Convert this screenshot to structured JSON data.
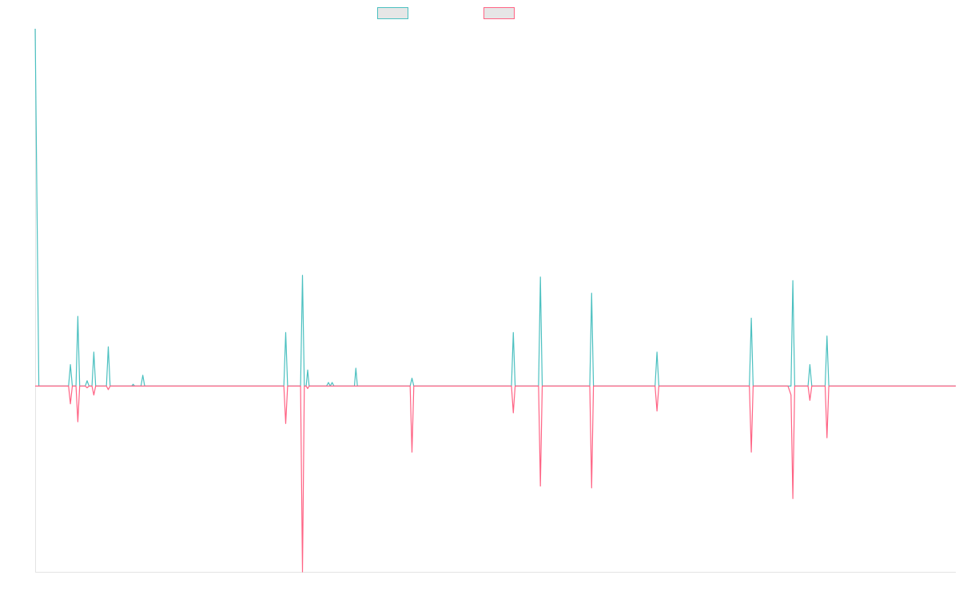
{
  "chart_data": {
    "type": "line",
    "xlim": [
      0,
      248
    ],
    "ylim": [
      -52,
      100
    ],
    "grid": false,
    "legend_position": "top-center",
    "series": [
      {
        "name": "",
        "color": "#4bc0c0",
        "points": [
          [
            0,
            100
          ],
          [
            1,
            0
          ],
          [
            9,
            0
          ],
          [
            9.5,
            6
          ],
          [
            10,
            0
          ],
          [
            11,
            0
          ],
          [
            11.5,
            19.5
          ],
          [
            12,
            0
          ],
          [
            13.5,
            0
          ],
          [
            14,
            1.5
          ],
          [
            14.5,
            0
          ],
          [
            15.3,
            0
          ],
          [
            15.8,
            9.5
          ],
          [
            16.3,
            0
          ],
          [
            19.2,
            0
          ],
          [
            19.7,
            11
          ],
          [
            20.2,
            0
          ],
          [
            26,
            0
          ],
          [
            26.4,
            0.5
          ],
          [
            26.8,
            0
          ],
          [
            28.5,
            0
          ],
          [
            29,
            3
          ],
          [
            29.5,
            0
          ],
          [
            67,
            0
          ],
          [
            67.5,
            15
          ],
          [
            68,
            0
          ],
          [
            71.5,
            0
          ],
          [
            72,
            31
          ],
          [
            72.5,
            0
          ],
          [
            73,
            0
          ],
          [
            73.4,
            4.5
          ],
          [
            73.8,
            0
          ],
          [
            78.5,
            0
          ],
          [
            79,
            1
          ],
          [
            79.5,
            0
          ],
          [
            80,
            1
          ],
          [
            80.5,
            0
          ],
          [
            86,
            0
          ],
          [
            86.4,
            5
          ],
          [
            86.8,
            0
          ],
          [
            101,
            0
          ],
          [
            101.5,
            2.2
          ],
          [
            102,
            0
          ],
          [
            128.3,
            0
          ],
          [
            128.8,
            15
          ],
          [
            129.3,
            0
          ],
          [
            135.6,
            0
          ],
          [
            136.1,
            30.5
          ],
          [
            136.6,
            0
          ],
          [
            149.4,
            0
          ],
          [
            149.9,
            26
          ],
          [
            150.4,
            0
          ],
          [
            167,
            0
          ],
          [
            167.5,
            9.5
          ],
          [
            168,
            0
          ],
          [
            192.4,
            0
          ],
          [
            192.9,
            19
          ],
          [
            193.4,
            0
          ],
          [
            203.6,
            0
          ],
          [
            204.1,
            29.5
          ],
          [
            204.6,
            0
          ],
          [
            208.2,
            0
          ],
          [
            208.7,
            6
          ],
          [
            209.2,
            0
          ],
          [
            212.8,
            0
          ],
          [
            213.3,
            14
          ],
          [
            213.8,
            0
          ],
          [
            248,
            0
          ]
        ]
      },
      {
        "name": "",
        "color": "#ff6384",
        "points": [
          [
            0,
            0
          ],
          [
            9,
            0
          ],
          [
            9.5,
            -5
          ],
          [
            10,
            0
          ],
          [
            11,
            0
          ],
          [
            11.5,
            -10
          ],
          [
            12,
            0
          ],
          [
            13.5,
            0
          ],
          [
            14,
            -0.5
          ],
          [
            14.5,
            0
          ],
          [
            15.3,
            0
          ],
          [
            15.8,
            -2.5
          ],
          [
            16.3,
            0
          ],
          [
            19.2,
            0
          ],
          [
            19.7,
            -1
          ],
          [
            20.2,
            0
          ],
          [
            67,
            0
          ],
          [
            67.5,
            -10.5
          ],
          [
            68,
            0
          ],
          [
            71.5,
            0
          ],
          [
            72,
            -52
          ],
          [
            72.5,
            0
          ],
          [
            73,
            0
          ],
          [
            73.4,
            -0.7
          ],
          [
            73.8,
            0
          ],
          [
            101,
            0
          ],
          [
            101.5,
            -18.5
          ],
          [
            102,
            0
          ],
          [
            128.3,
            0
          ],
          [
            128.8,
            -7.5
          ],
          [
            129.3,
            0
          ],
          [
            135.6,
            0
          ],
          [
            136.1,
            -28
          ],
          [
            136.6,
            0
          ],
          [
            149.4,
            0
          ],
          [
            149.9,
            -28.5
          ],
          [
            150.4,
            0
          ],
          [
            167,
            0
          ],
          [
            167.5,
            -7
          ],
          [
            168,
            0
          ],
          [
            192.4,
            0
          ],
          [
            192.9,
            -18.5
          ],
          [
            193.4,
            0
          ],
          [
            202.8,
            0
          ],
          [
            203.6,
            -2.5
          ],
          [
            204.1,
            -31.5
          ],
          [
            204.6,
            0
          ],
          [
            208.2,
            0
          ],
          [
            208.7,
            -4
          ],
          [
            209.2,
            0
          ],
          [
            212.8,
            0
          ],
          [
            213.3,
            -14.5
          ],
          [
            213.8,
            0
          ],
          [
            248,
            0
          ]
        ]
      }
    ]
  }
}
